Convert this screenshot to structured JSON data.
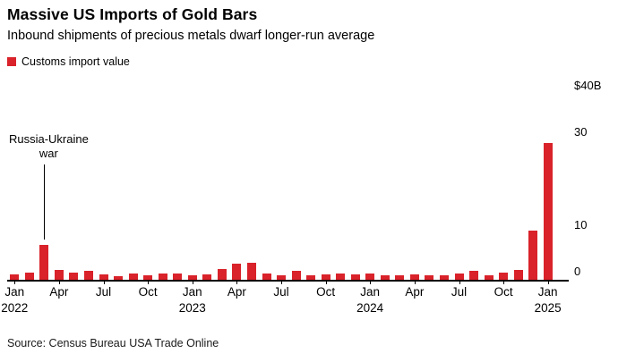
{
  "chart_data": {
    "type": "bar",
    "title": "Massive US Imports of Gold Bars",
    "subtitle": "Inbound shipments of precious metals dwarf longer-run average",
    "legend_label": "Customs import value",
    "bar_color": "#d9222a",
    "source": "Source: Census Bureau USA Trade Online",
    "ylabel": "Customs import value ($B)",
    "ylim": [
      0,
      40
    ],
    "y_ticks": [
      {
        "value": 40,
        "label": "$40B"
      },
      {
        "value": 30,
        "label": "30"
      },
      {
        "value": 10,
        "label": "10"
      },
      {
        "value": 0,
        "label": "0"
      }
    ],
    "x": [
      "Jan 2022",
      "Feb 2022",
      "Mar 2022",
      "Apr 2022",
      "May 2022",
      "Jun 2022",
      "Jul 2022",
      "Aug 2022",
      "Sep 2022",
      "Oct 2022",
      "Nov 2022",
      "Dec 2022",
      "Jan 2023",
      "Feb 2023",
      "Mar 2023",
      "Apr 2023",
      "May 2023",
      "Jun 2023",
      "Jul 2023",
      "Aug 2023",
      "Sep 2023",
      "Oct 2023",
      "Nov 2023",
      "Dec 2023",
      "Jan 2024",
      "Feb 2024",
      "Mar 2024",
      "Apr 2024",
      "May 2024",
      "Jun 2024",
      "Jul 2024",
      "Aug 2024",
      "Sep 2024",
      "Oct 2024",
      "Nov 2024",
      "Dec 2024",
      "Jan 2025"
    ],
    "values": [
      1.2,
      1.5,
      7.5,
      2.2,
      1.5,
      2.0,
      1.2,
      0.8,
      1.3,
      1.0,
      1.3,
      1.4,
      0.9,
      1.2,
      2.3,
      3.5,
      3.6,
      1.4,
      1.0,
      1.9,
      1.0,
      1.2,
      1.4,
      1.2,
      1.4,
      1.0,
      0.9,
      1.1,
      0.9,
      0.9,
      1.4,
      2.0,
      1.0,
      1.6,
      2.2,
      10.5,
      29.5
    ],
    "x_ticks": [
      {
        "index": 0,
        "label": "Jan",
        "year": "2022"
      },
      {
        "index": 3,
        "label": "Apr"
      },
      {
        "index": 6,
        "label": "Jul"
      },
      {
        "index": 9,
        "label": "Oct"
      },
      {
        "index": 12,
        "label": "Jan",
        "year": "2023"
      },
      {
        "index": 15,
        "label": "Apr"
      },
      {
        "index": 18,
        "label": "Jul"
      },
      {
        "index": 21,
        "label": "Oct"
      },
      {
        "index": 24,
        "label": "Jan",
        "year": "2024"
      },
      {
        "index": 27,
        "label": "Apr"
      },
      {
        "index": 30,
        "label": "Jul"
      },
      {
        "index": 33,
        "label": "Oct"
      },
      {
        "index": 36,
        "label": "Jan",
        "year": "2025"
      }
    ],
    "annotation": {
      "line1": "Russia-Ukraine",
      "line2": "war",
      "bar_index": 2
    },
    "grid": false,
    "legend_position": "top-left"
  }
}
